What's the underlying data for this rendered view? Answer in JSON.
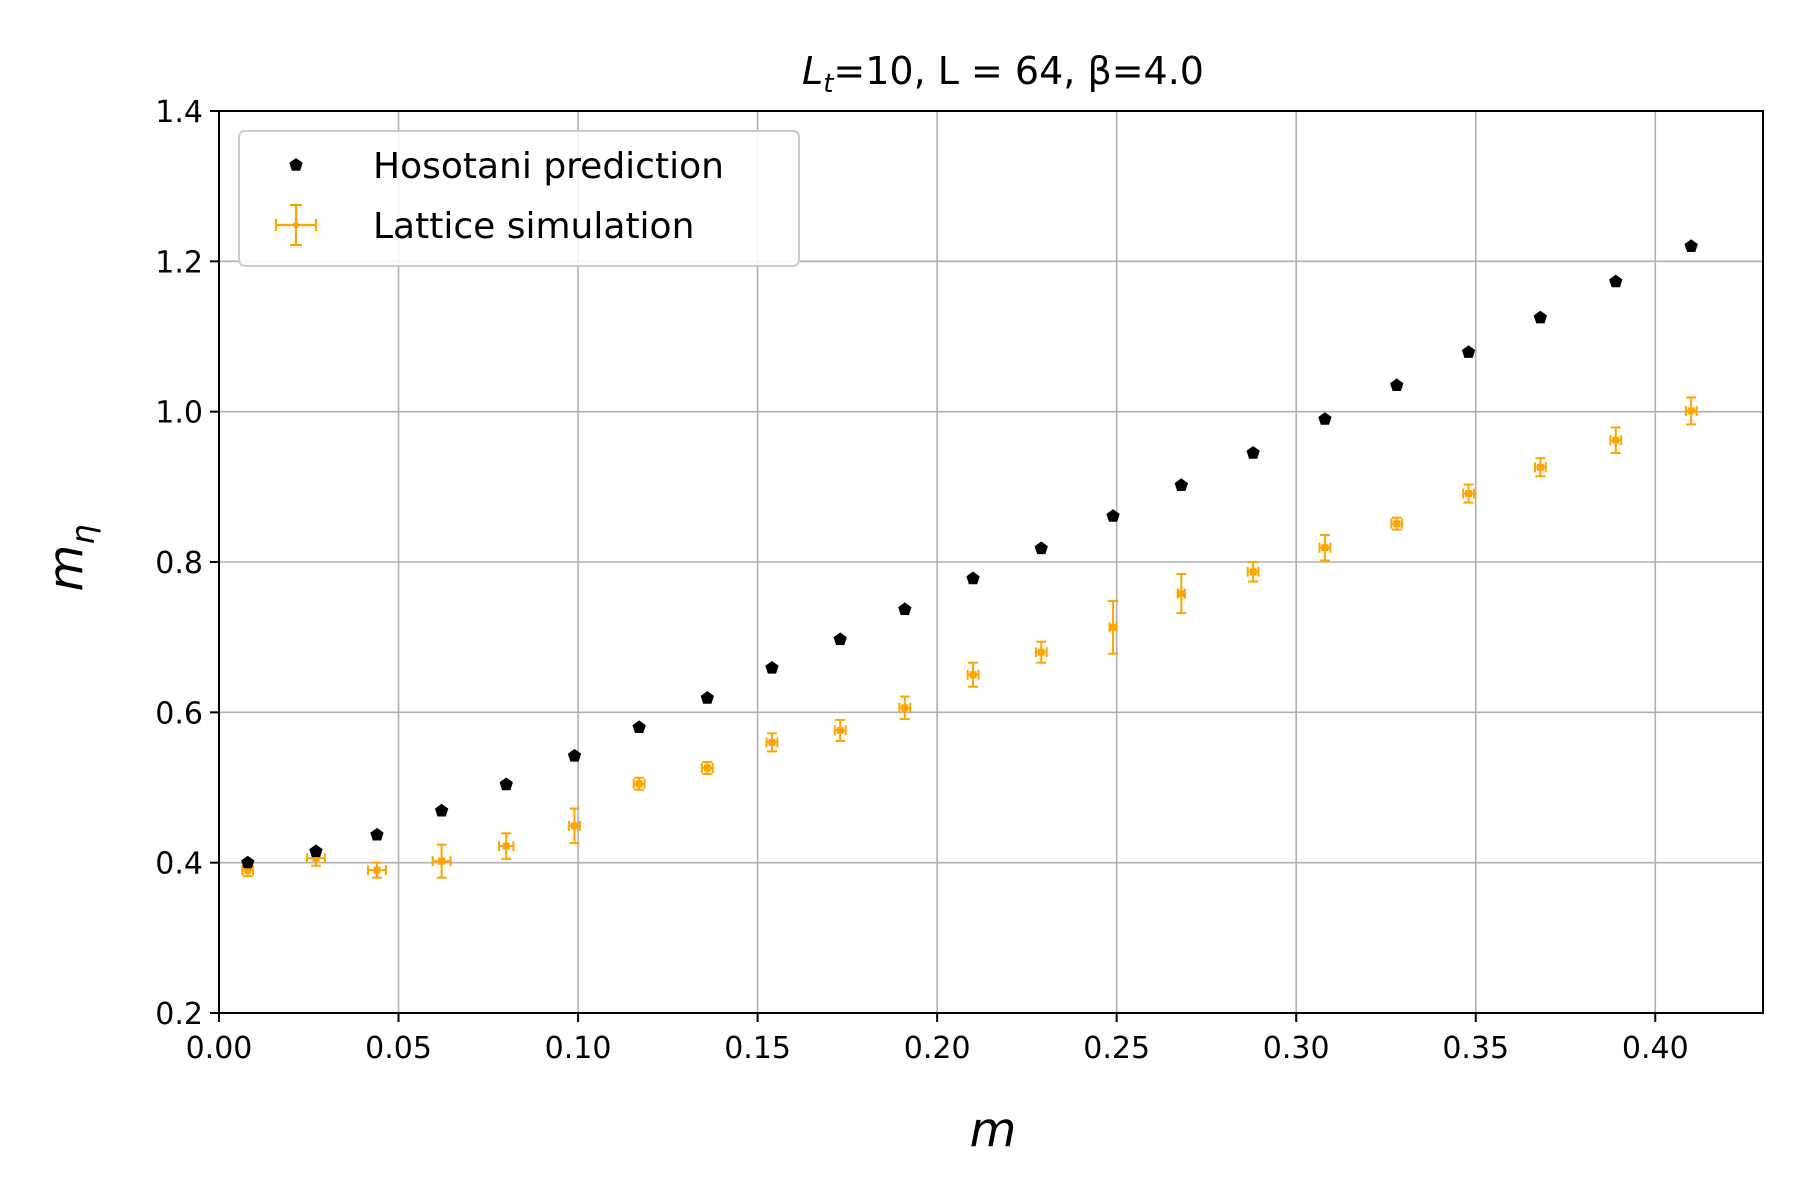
{
  "chart_data": {
    "type": "scatter",
    "title": "L_t=10, L = 64, β=4.0",
    "xlabel": "m",
    "ylabel": "m_η",
    "xlim": [
      0.0,
      0.43
    ],
    "ylim": [
      0.2,
      1.4
    ],
    "x_ticks": [
      "0.00",
      "0.05",
      "0.10",
      "0.15",
      "0.20",
      "0.25",
      "0.30",
      "0.35",
      "0.40"
    ],
    "y_ticks": [
      "0.2",
      "0.4",
      "0.6",
      "0.8",
      "1.0",
      "1.2",
      "1.4"
    ],
    "grid": true,
    "legend_position": "top-left",
    "series": [
      {
        "name": "Hosotani prediction",
        "color": "#000000",
        "marker": "pentagon",
        "points": [
          {
            "x": 0.008,
            "y": 0.4
          },
          {
            "x": 0.027,
            "y": 0.415
          },
          {
            "x": 0.044,
            "y": 0.437
          },
          {
            "x": 0.062,
            "y": 0.469
          },
          {
            "x": 0.08,
            "y": 0.504
          },
          {
            "x": 0.099,
            "y": 0.542
          },
          {
            "x": 0.117,
            "y": 0.58
          },
          {
            "x": 0.136,
            "y": 0.619
          },
          {
            "x": 0.154,
            "y": 0.659
          },
          {
            "x": 0.173,
            "y": 0.697
          },
          {
            "x": 0.191,
            "y": 0.737
          },
          {
            "x": 0.21,
            "y": 0.778
          },
          {
            "x": 0.229,
            "y": 0.818
          },
          {
            "x": 0.249,
            "y": 0.861
          },
          {
            "x": 0.268,
            "y": 0.902
          },
          {
            "x": 0.288,
            "y": 0.945
          },
          {
            "x": 0.308,
            "y": 0.99
          },
          {
            "x": 0.328,
            "y": 1.035
          },
          {
            "x": 0.348,
            "y": 1.079
          },
          {
            "x": 0.368,
            "y": 1.125
          },
          {
            "x": 0.389,
            "y": 1.173
          },
          {
            "x": 0.41,
            "y": 1.22
          }
        ]
      },
      {
        "name": "Lattice simulation",
        "color": "#ffa500",
        "marker": "errorbar",
        "points": [
          {
            "x": 0.008,
            "y": 0.39,
            "yerr": 0.008,
            "xerr": 0.0015
          },
          {
            "x": 0.027,
            "y": 0.406,
            "yerr": 0.01,
            "xerr": 0.0025
          },
          {
            "x": 0.044,
            "y": 0.39,
            "yerr": 0.01,
            "xerr": 0.0025
          },
          {
            "x": 0.062,
            "y": 0.402,
            "yerr": 0.022,
            "xerr": 0.0025
          },
          {
            "x": 0.08,
            "y": 0.422,
            "yerr": 0.017,
            "xerr": 0.002
          },
          {
            "x": 0.099,
            "y": 0.449,
            "yerr": 0.023,
            "xerr": 0.0015
          },
          {
            "x": 0.117,
            "y": 0.505,
            "yerr": 0.008,
            "xerr": 0.0015
          },
          {
            "x": 0.136,
            "y": 0.526,
            "yerr": 0.008,
            "xerr": 0.0015
          },
          {
            "x": 0.154,
            "y": 0.56,
            "yerr": 0.012,
            "xerr": 0.0015
          },
          {
            "x": 0.173,
            "y": 0.576,
            "yerr": 0.014,
            "xerr": 0.0015
          },
          {
            "x": 0.191,
            "y": 0.606,
            "yerr": 0.015,
            "xerr": 0.0015
          },
          {
            "x": 0.21,
            "y": 0.65,
            "yerr": 0.016,
            "xerr": 0.0015
          },
          {
            "x": 0.229,
            "y": 0.68,
            "yerr": 0.014,
            "xerr": 0.0015
          },
          {
            "x": 0.249,
            "y": 0.713,
            "yerr": 0.035,
            "xerr": 0.001
          },
          {
            "x": 0.268,
            "y": 0.758,
            "yerr": 0.026,
            "xerr": 0.001
          },
          {
            "x": 0.288,
            "y": 0.787,
            "yerr": 0.013,
            "xerr": 0.0015
          },
          {
            "x": 0.308,
            "y": 0.819,
            "yerr": 0.017,
            "xerr": 0.0015
          },
          {
            "x": 0.328,
            "y": 0.851,
            "yerr": 0.008,
            "xerr": 0.0015
          },
          {
            "x": 0.348,
            "y": 0.891,
            "yerr": 0.012,
            "xerr": 0.0015
          },
          {
            "x": 0.368,
            "y": 0.926,
            "yerr": 0.012,
            "xerr": 0.0015
          },
          {
            "x": 0.389,
            "y": 0.962,
            "yerr": 0.017,
            "xerr": 0.0015
          },
          {
            "x": 0.41,
            "y": 1.001,
            "yerr": 0.018,
            "xerr": 0.0015
          }
        ]
      }
    ]
  }
}
